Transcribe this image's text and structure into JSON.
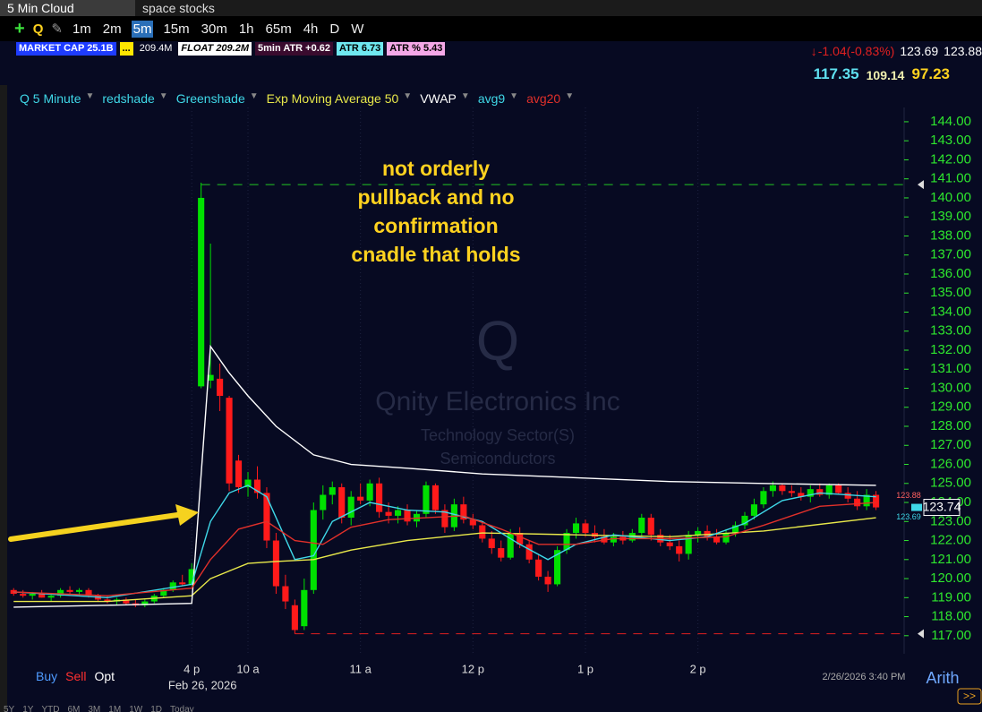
{
  "ui": {
    "tabs": [
      "5 Min Cloud",
      "space stocks"
    ],
    "toolbar": {
      "symbol": "Q",
      "timeframes": [
        "1m",
        "2m",
        "5m",
        "15m",
        "30m",
        "1h",
        "65m",
        "4h",
        "D",
        "W"
      ],
      "active": 2
    },
    "info": {
      "market_cap": "MARKET CAP 25.1B",
      "dots": "...",
      "volume": "209.4M",
      "float": "FLOAT 209.2M",
      "atr5": "5min ATR +0.62",
      "atr": "ATR 6.73",
      "atr_pct": "ATR % 5.43"
    },
    "quote": {
      "change": "-1.04(-0.83%)",
      "bid": "123.69",
      "ask": "123.88",
      "levels": [
        "117.35",
        "109.14",
        "97.23"
      ]
    },
    "study_bar": [
      "Q 5 Minute",
      "redshade",
      "Greenshade"
    ],
    "watermark": {
      "symbol": "Q",
      "name": "Qnity Electronics Inc",
      "sector": "Technology Sector(S)",
      "industry": "Semiconductors"
    },
    "footer": {
      "trade": [
        "Buy",
        "Sell",
        "Opt"
      ],
      "ranges": [
        "5Y",
        "1Y",
        "YTD",
        "6M",
        "3M",
        "1M",
        "1W",
        "1D",
        "Today"
      ],
      "timestamp": "2/26/2026 3:40 PM",
      "scale": "Arith"
    }
  },
  "chart_data": {
    "type": "candlestick",
    "annotation": [
      "not orderly",
      "pullback and no",
      "confirmation",
      "cnadle that holds"
    ],
    "date_label": "Feb 26, 2026",
    "up_color": "#00e000",
    "down_color": "#ff1a1a",
    "open": [
      119.4,
      119.2,
      119.1,
      119.2,
      119.0,
      119.1,
      119.4,
      119.3,
      119.4,
      119.1,
      118.9,
      118.8,
      118.9,
      118.7,
      118.6,
      118.8,
      119.1,
      119.4,
      119.8,
      119.7,
      130.1,
      130.4,
      130.5,
      129.5,
      126.2,
      124.8,
      125.2,
      124.5,
      122.0,
      119.6,
      118.6,
      117.5,
      119.4,
      123.6,
      124.4,
      124.8,
      123.2,
      124.3,
      124.1,
      125.0,
      123.5,
      123.3,
      123.6,
      123.0,
      123.4,
      124.9,
      123.6,
      122.7,
      123.9,
      123.1,
      122.8,
      122.1,
      121.6,
      121.1,
      122.4,
      121.8,
      121.0,
      120.1,
      119.7,
      121.5,
      122.4,
      122.9,
      122.4,
      122.2,
      121.9,
      122.2,
      122.0,
      122.4,
      123.2,
      122.3,
      121.9,
      121.7,
      121.3,
      122.3,
      122.5,
      122.2,
      121.9,
      122.4,
      122.8,
      123.3,
      123.9,
      124.6,
      124.9,
      124.6,
      124.5,
      124.3,
      124.7,
      124.4,
      124.9,
      124.5,
      124.2,
      123.8,
      124.4
    ],
    "high": [
      119.5,
      119.4,
      119.3,
      119.4,
      119.2,
      119.5,
      119.6,
      119.5,
      119.5,
      119.2,
      119.1,
      119.0,
      119.0,
      118.9,
      118.9,
      119.2,
      119.5,
      119.9,
      120.2,
      120.8,
      140.8,
      137.6,
      131.3,
      129.6,
      126.5,
      125.6,
      125.9,
      124.8,
      122.4,
      120.2,
      118.9,
      120.0,
      124.0,
      124.9,
      125.1,
      125.0,
      124.6,
      125.0,
      125.2,
      125.3,
      124.0,
      123.8,
      123.9,
      123.6,
      125.1,
      125.0,
      123.9,
      124.2,
      124.3,
      123.4,
      123.0,
      122.5,
      122.0,
      122.6,
      122.7,
      122.0,
      121.3,
      120.4,
      121.7,
      122.6,
      123.2,
      123.1,
      122.8,
      122.6,
      122.4,
      122.5,
      122.6,
      123.4,
      123.4,
      122.6,
      122.3,
      122.0,
      122.5,
      122.7,
      122.8,
      122.6,
      122.6,
      123.0,
      123.5,
      124.2,
      124.8,
      125.1,
      125.0,
      124.9,
      124.8,
      124.9,
      125.0,
      125.0,
      125.0,
      124.8,
      124.6,
      124.7,
      124.6
    ],
    "low": [
      119.1,
      119.0,
      118.9,
      119.0,
      118.8,
      119.0,
      119.2,
      119.1,
      119.0,
      118.8,
      118.7,
      118.6,
      118.6,
      118.5,
      118.5,
      118.7,
      119.0,
      119.3,
      119.6,
      119.6,
      130.0,
      130.0,
      128.8,
      124.6,
      124.5,
      124.3,
      124.2,
      121.6,
      119.2,
      118.4,
      117.1,
      117.3,
      119.2,
      123.1,
      123.9,
      122.9,
      122.8,
      123.9,
      123.8,
      123.2,
      122.9,
      122.9,
      122.8,
      122.7,
      123.2,
      123.4,
      122.4,
      122.5,
      122.9,
      122.6,
      121.9,
      121.3,
      120.9,
      121.0,
      121.6,
      120.8,
      119.9,
      119.3,
      119.6,
      121.3,
      122.1,
      122.2,
      121.9,
      121.8,
      121.7,
      121.8,
      121.9,
      122.2,
      122.0,
      121.7,
      121.5,
      120.9,
      121.0,
      121.9,
      122.0,
      121.8,
      121.8,
      122.2,
      122.6,
      123.1,
      123.7,
      124.3,
      124.4,
      124.3,
      124.1,
      124.0,
      124.3,
      124.2,
      124.4,
      124.0,
      123.6,
      123.6,
      123.6
    ],
    "close": [
      119.2,
      119.1,
      119.2,
      119.0,
      119.1,
      119.4,
      119.3,
      119.4,
      119.1,
      118.9,
      118.8,
      118.9,
      118.7,
      118.6,
      118.8,
      119.1,
      119.4,
      119.8,
      119.7,
      120.5,
      140.0,
      130.7,
      129.6,
      125.0,
      124.8,
      125.2,
      124.5,
      122.0,
      119.6,
      118.8,
      117.3,
      119.4,
      123.6,
      124.4,
      124.8,
      123.2,
      124.3,
      124.1,
      125.0,
      123.5,
      123.3,
      123.6,
      123.0,
      123.4,
      124.9,
      123.6,
      122.7,
      123.9,
      123.1,
      122.8,
      122.1,
      121.6,
      121.1,
      122.4,
      121.8,
      121.0,
      120.1,
      119.7,
      121.5,
      122.4,
      122.9,
      122.4,
      122.2,
      121.9,
      122.2,
      122.0,
      122.4,
      123.2,
      122.3,
      121.9,
      121.7,
      121.3,
      122.3,
      122.5,
      122.2,
      121.9,
      122.4,
      122.8,
      123.3,
      123.9,
      124.6,
      124.9,
      124.6,
      124.5,
      124.3,
      124.7,
      124.4,
      124.9,
      124.5,
      124.2,
      123.8,
      124.4,
      123.74
    ],
    "series": [
      {
        "name": "Exp Moving Average 50",
        "color": "#e8e84a",
        "x": [
          0,
          10,
          19,
          21,
          25,
          28,
          32,
          36,
          42,
          50,
          60,
          70,
          80,
          92
        ],
        "values": [
          118.8,
          118.8,
          119.1,
          120.0,
          120.8,
          120.9,
          121.0,
          121.5,
          122.0,
          122.4,
          122.3,
          122.2,
          122.5,
          123.2
        ]
      },
      {
        "name": "VWAP",
        "color": "#ffffff",
        "x": [
          0,
          10,
          19,
          21,
          23,
          25,
          28,
          32,
          36,
          42,
          50,
          60,
          70,
          80,
          92
        ],
        "values": [
          118.5,
          118.6,
          118.7,
          132.2,
          130.8,
          129.6,
          128.0,
          126.5,
          126.0,
          125.8,
          125.5,
          125.3,
          125.1,
          125.0,
          124.9
        ]
      },
      {
        "name": "avg9",
        "color": "#3fd8e8",
        "x": [
          0,
          10,
          19,
          21,
          23,
          25,
          27,
          30,
          32,
          34,
          38,
          42,
          46,
          50,
          54,
          57,
          60,
          64,
          70,
          74,
          78,
          82,
          86,
          92
        ],
        "values": [
          119.3,
          119.0,
          119.7,
          123.0,
          124.5,
          124.9,
          124.3,
          121.0,
          121.2,
          123.0,
          124.0,
          123.6,
          123.5,
          123.0,
          121.8,
          121.0,
          121.8,
          122.3,
          122.0,
          122.2,
          122.9,
          124.1,
          124.5,
          124.3
        ]
      },
      {
        "name": "avg20",
        "color": "#e0302a",
        "x": [
          0,
          10,
          19,
          21,
          24,
          27,
          30,
          33,
          36,
          40,
          44,
          48,
          52,
          56,
          60,
          64,
          70,
          76,
          80,
          86,
          92
        ],
        "values": [
          119.3,
          119.1,
          119.5,
          121.0,
          122.6,
          123.0,
          122.0,
          121.8,
          122.7,
          123.1,
          123.2,
          123.3,
          122.6,
          121.8,
          121.8,
          122.1,
          122.1,
          122.2,
          122.8,
          123.8,
          124.0
        ]
      }
    ],
    "hlines": [
      {
        "value": 140.7,
        "color": "#22c822",
        "from": 20
      },
      {
        "value": 117.1,
        "color": "#e02020",
        "from": 30
      }
    ],
    "price_labels": [
      {
        "value": 123.88,
        "color": "#ff6060"
      },
      {
        "value": 123.74,
        "color": "#ffffff"
      },
      {
        "value": 123.69,
        "color": "#3fd8e8"
      }
    ],
    "xlim": [
      -0.5,
      95
    ],
    "xticks": [
      {
        "value": 19,
        "label": "4 p"
      },
      {
        "value": 25,
        "label": "10 a"
      },
      {
        "value": 37,
        "label": "11 a"
      },
      {
        "value": 49,
        "label": "12 p"
      },
      {
        "value": 61,
        "label": "1 p"
      },
      {
        "value": 73,
        "label": "2 p"
      }
    ],
    "grid": true,
    "ylim": [
      116.05,
      144.75
    ],
    "yticks": [
      {
        "value": 117,
        "label": "117.00"
      },
      {
        "value": 118,
        "label": "118.00"
      },
      {
        "value": 119,
        "label": "119.00"
      },
      {
        "value": 120,
        "label": "120.00"
      },
      {
        "value": 121,
        "label": "121.00"
      },
      {
        "value": 122,
        "label": "122.00"
      },
      {
        "value": 123,
        "label": "123.00"
      },
      {
        "value": 124,
        "label": "124.00"
      },
      {
        "value": 125,
        "label": "125.00"
      },
      {
        "value": 126,
        "label": "126.00"
      },
      {
        "value": 127,
        "label": "127.00"
      },
      {
        "value": 128,
        "label": "128.00"
      },
      {
        "value": 129,
        "label": "129.00"
      },
      {
        "value": 130,
        "label": "130.00"
      },
      {
        "value": 131,
        "label": "131.00"
      },
      {
        "value": 132,
        "label": "132.00"
      },
      {
        "value": 133,
        "label": "133.00"
      },
      {
        "value": 134,
        "label": "134.00"
      },
      {
        "value": 135,
        "label": "135.00"
      },
      {
        "value": 136,
        "label": "136.00"
      },
      {
        "value": 137,
        "label": "137.00"
      },
      {
        "value": 138,
        "label": "138.00"
      },
      {
        "value": 139,
        "label": "139.00"
      },
      {
        "value": 140,
        "label": "140.00"
      },
      {
        "value": 141,
        "label": "141.00"
      },
      {
        "value": 142,
        "label": "142.00"
      },
      {
        "value": 143,
        "label": "143.00"
      },
      {
        "value": 144,
        "label": "144.00"
      }
    ]
  }
}
